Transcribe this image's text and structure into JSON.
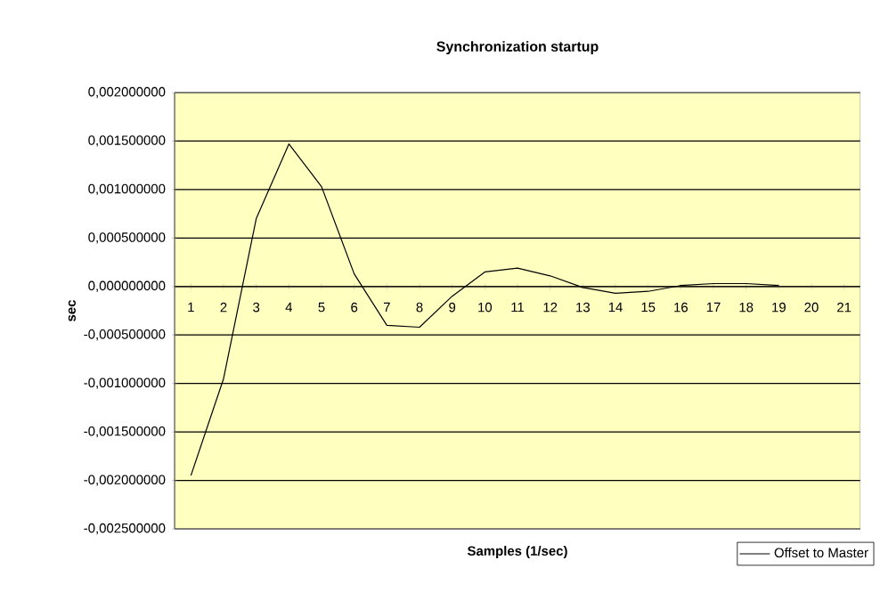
{
  "chart_data": {
    "type": "line",
    "title": "Synchronization startup",
    "xlabel": "Samples (1/sec)",
    "ylabel": "sec",
    "categories": [
      "1",
      "2",
      "3",
      "4",
      "5",
      "6",
      "7",
      "8",
      "9",
      "10",
      "11",
      "12",
      "13",
      "14",
      "15",
      "16",
      "17",
      "18",
      "19",
      "20",
      "21"
    ],
    "series": [
      {
        "name": "Offset to Master",
        "color": "#000000",
        "values": [
          -0.00195,
          -0.00095,
          0.0007,
          0.00147,
          0.00103,
          0.00013,
          -0.0004,
          -0.00042,
          -0.0001,
          0.00015,
          0.00019,
          0.00011,
          -1e-05,
          -7e-05,
          -5e-05,
          1e-05,
          3e-05,
          3e-05,
          1e-05,
          null,
          null
        ]
      }
    ],
    "ylim": [
      -0.0025,
      0.002
    ],
    "yticks": [
      {
        "value": -0.0025,
        "label": "-0,002500000"
      },
      {
        "value": -0.002,
        "label": "-0,002000000"
      },
      {
        "value": -0.0015,
        "label": "-0,001500000"
      },
      {
        "value": -0.001,
        "label": "-0,001000000"
      },
      {
        "value": -0.0005,
        "label": "-0,000500000"
      },
      {
        "value": 0,
        "label": "0,000000000"
      },
      {
        "value": 0.0005,
        "label": "0,000500000"
      },
      {
        "value": 0.001,
        "label": "0,001000000"
      },
      {
        "value": 0.0015,
        "label": "0,001500000"
      },
      {
        "value": 0.002,
        "label": "0,002000000"
      }
    ],
    "grid": "y",
    "legend": "bottom right",
    "marker": "none",
    "line_style": "solid"
  }
}
